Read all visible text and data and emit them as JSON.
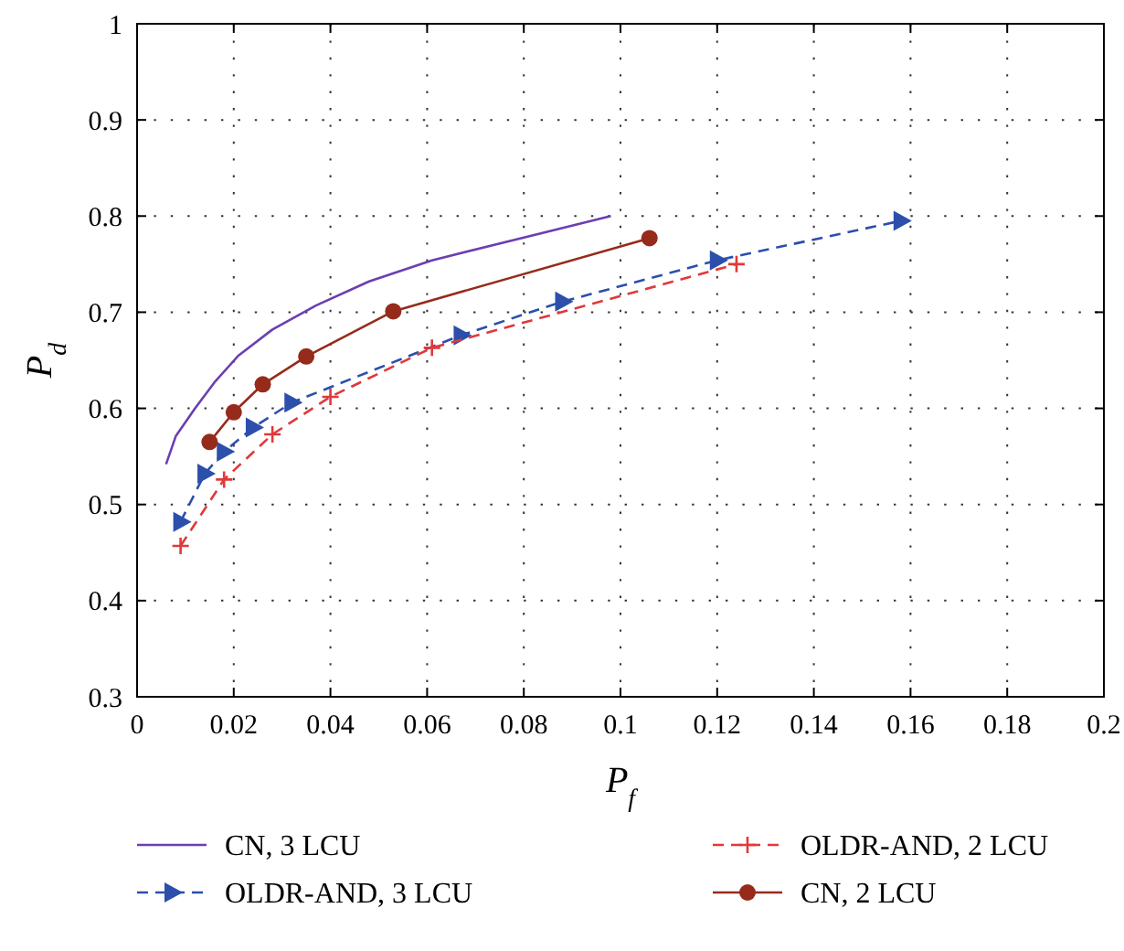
{
  "chart_data": {
    "type": "line",
    "xlabel": "P$_{f}$",
    "ylabel": "P$_{d}$",
    "xlim": [
      0,
      0.2
    ],
    "xticks": [
      0,
      0.02,
      0.04,
      0.06,
      0.08,
      0.1,
      0.12,
      0.14,
      0.16,
      0.18,
      0.2
    ],
    "ylim": [
      0.3,
      1
    ],
    "yticks": [
      0.3,
      0.4,
      0.5,
      0.6,
      0.7,
      0.8,
      0.9,
      1
    ],
    "grid": true,
    "legend": "bottom",
    "series": [
      {
        "name": "CN, 3 LCU",
        "color": "#6b3fb0",
        "line_style": "solid",
        "marker": "none",
        "x": [
          0.006,
          0.008,
          0.012,
          0.016,
          0.021,
          0.028,
          0.037,
          0.048,
          0.061,
          0.098
        ],
        "values": [
          0.542,
          0.571,
          0.6,
          0.627,
          0.655,
          0.682,
          0.707,
          0.732,
          0.754,
          0.8
        ]
      },
      {
        "name": "OLDR-AND, 3 LCU",
        "color": "#2b4fab",
        "line_style": "dashed",
        "marker": "triangle",
        "x": [
          0.009,
          0.014,
          0.018,
          0.024,
          0.032,
          0.067,
          0.088,
          0.12,
          0.158
        ],
        "values": [
          0.482,
          0.532,
          0.555,
          0.58,
          0.606,
          0.676,
          0.711,
          0.754,
          0.795
        ]
      },
      {
        "name": "OLDR-AND, 2 LCU",
        "color": "#e0393b",
        "line_style": "dashed",
        "marker": "cross",
        "x": [
          0.009,
          0.018,
          0.028,
          0.04,
          0.061,
          0.124
        ],
        "values": [
          0.457,
          0.526,
          0.573,
          0.612,
          0.663,
          0.75
        ]
      },
      {
        "name": "CN, 2 LCU",
        "color": "#962b1c",
        "line_style": "solid",
        "marker": "circle",
        "x": [
          0.015,
          0.02,
          0.026,
          0.035,
          0.053,
          0.106
        ],
        "values": [
          0.565,
          0.596,
          0.625,
          0.654,
          0.701,
          0.777
        ]
      }
    ]
  }
}
